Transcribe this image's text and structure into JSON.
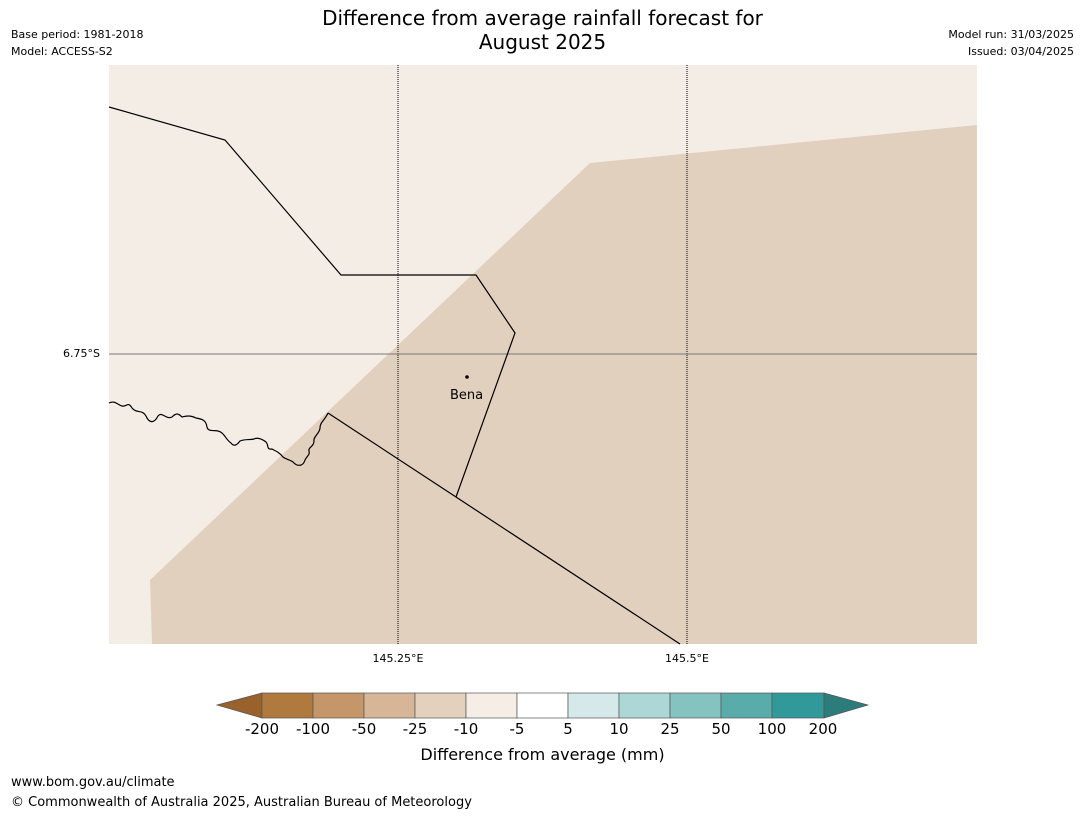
{
  "title_line1": "Difference from average rainfall forecast for",
  "title_line2": "August 2025",
  "base_period": "Base period: 1981-2018",
  "model": "Model: ACCESS-S2",
  "model_run": "Model run: 31/03/2025",
  "issued": "Issued: 03/04/2025",
  "map": {
    "latitude_labels": [
      "6.75°S"
    ],
    "longitude_labels": [
      "145.25°E",
      "145.5°E"
    ],
    "place": "Bena",
    "colors": {
      "land_light": "#f4ede6",
      "land_tan": "#e2d0bf"
    }
  },
  "colorbar": {
    "label": "Difference from average (mm)",
    "ticks": [
      "-200",
      "-100",
      "-50",
      "-25",
      "-10",
      "-5",
      "5",
      "10",
      "25",
      "50",
      "100",
      "200"
    ],
    "colors": [
      "#99622c",
      "#b07a3f",
      "#c49669",
      "#d6b696",
      "#e3d0bd",
      "#f5ede6",
      "#ffffff",
      "#d6e9ea",
      "#add7d6",
      "#85c3c0",
      "#5aacab",
      "#31999a",
      "#2d7c7c"
    ]
  },
  "footer": {
    "url": "www.bom.gov.au/climate",
    "copyright": "© Commonwealth of Australia 2025, Australian Bureau of Meteorology"
  }
}
